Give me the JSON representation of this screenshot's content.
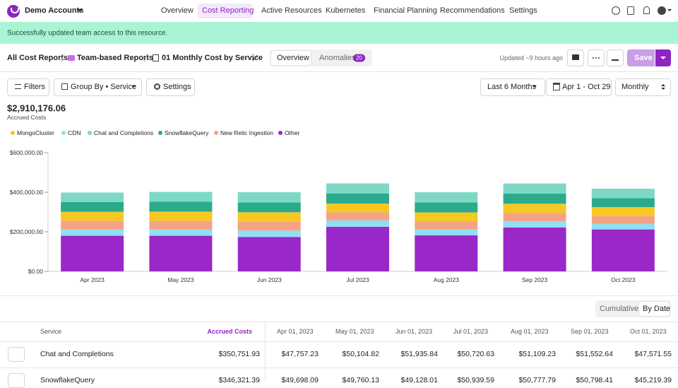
{
  "nav": {
    "account": "Demo Accounts",
    "tabs": [
      "Overview",
      "Cost Reporting",
      "Active Resources",
      "Kubernetes",
      "Financial Planning",
      "Recommendations",
      "Settings"
    ]
  },
  "banner": {
    "message": "Successfully updated team access to this resource."
  },
  "breadcrumb": {
    "root": "All Cost Reports",
    "folder": "Team-based Reports",
    "report": "01 Monthly Cost by Service"
  },
  "view_tabs": {
    "overview": "Overview",
    "anomalies": "Anomalies",
    "anomalies_count": "20"
  },
  "header_actions": {
    "updated": "Updated ~9 hours ago",
    "save": "Save"
  },
  "toolbar": {
    "filters": "Filters",
    "group_by": "Group By • Service",
    "settings": "Settings",
    "range": "Last 6 Months",
    "dates": "Apr 1 - Oct 29",
    "granularity": "Monthly"
  },
  "summary": {
    "total": "$2,910,176.06",
    "label": "Accrued Costs"
  },
  "chart_data": {
    "type": "stacked_bar",
    "categories": [
      "Apr 2023",
      "May 2023",
      "Jun 2023",
      "Jul 2023",
      "Aug 2023",
      "Sep 2023",
      "Oct 2023"
    ],
    "series": [
      {
        "name": "MongoCluster",
        "color": "#f5c824",
        "values": [
          46000,
          47000,
          48000,
          45000,
          46000,
          46000,
          45000
        ]
      },
      {
        "name": "CDN",
        "color": "#90dff5",
        "values": [
          32000,
          32000,
          32000,
          33000,
          30000,
          32000,
          28000
        ]
      },
      {
        "name": "Chat and Completions",
        "color": "#7dd9c6",
        "values": [
          47757.23,
          50104.82,
          51935.84,
          50720.63,
          51109.23,
          51552.64,
          47571.55
        ]
      },
      {
        "name": "SnowflakeQuery",
        "color": "#2bab8c",
        "values": [
          49698.09,
          49760.13,
          49128.01,
          50939.59,
          50777.79,
          50798.41,
          45219.39
        ]
      },
      {
        "name": "New Relic Ingestion",
        "color": "#f4a384",
        "values": [
          43000,
          43000,
          45000,
          40000,
          40000,
          42000,
          40000
        ]
      },
      {
        "name": "Other",
        "color": "#9a27c8",
        "values": [
          180000,
          180000,
          174000,
          225000,
          182000,
          222000,
          212000
        ]
      }
    ],
    "ylim": [
      0,
      600000
    ],
    "yticks": [
      {
        "value": 0,
        "label": "$0.00"
      },
      {
        "value": 200000,
        "label": "$200,000.00"
      },
      {
        "value": 400000,
        "label": "$400,000.00"
      },
      {
        "value": 600000,
        "label": "$600,000.00"
      }
    ],
    "grid": false
  },
  "table_toggle": [
    "Cumulative",
    "By Date"
  ],
  "table": {
    "headers": [
      "Service",
      "Accrued Costs",
      "Apr 01, 2023",
      "May 01, 2023",
      "Jun 01, 2023",
      "Jul 01, 2023",
      "Aug 01, 2023",
      "Sep 01, 2023",
      "Oct 01, 2023"
    ],
    "rows": [
      [
        "Chat and Completions",
        "$350,751.93",
        "$47,757.23",
        "$50,104.82",
        "$51,935.84",
        "$50,720.63",
        "$51,109.23",
        "$51,552.64",
        "$47,571.55"
      ],
      [
        "SnowflakeQuery",
        "$346,321.39",
        "$49,698.09",
        "$49,760.13",
        "$49,128.01",
        "$50,939.59",
        "$50,777.79",
        "$50,798.41",
        "$45,219.39"
      ]
    ]
  }
}
